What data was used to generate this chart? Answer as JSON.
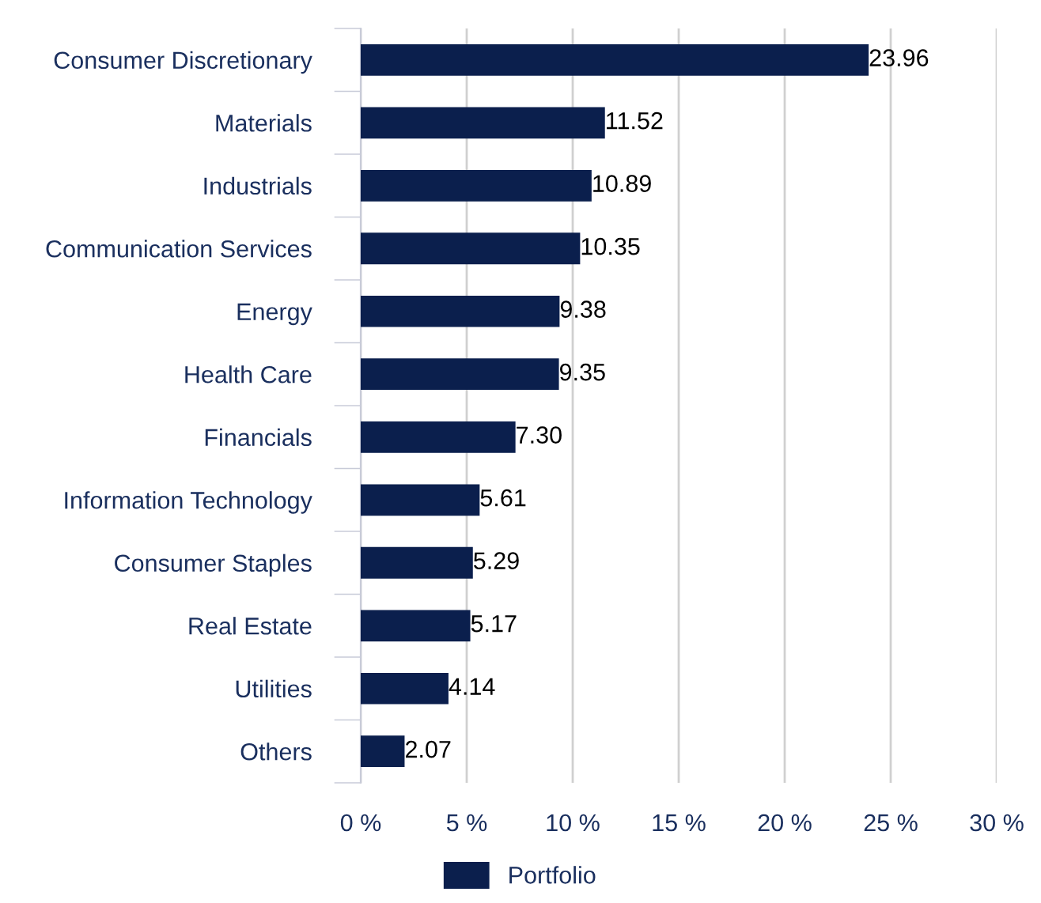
{
  "chart_data": {
    "type": "bar",
    "orientation": "horizontal",
    "categories": [
      "Consumer Discretionary",
      "Materials",
      "Industrials",
      "Communication Services",
      "Energy",
      "Health Care",
      "Financials",
      "Information Technology",
      "Consumer Staples",
      "Real Estate",
      "Utilities",
      "Others"
    ],
    "series": [
      {
        "name": "Portfolio",
        "color": "#0b1f4d",
        "values": [
          23.96,
          11.52,
          10.89,
          10.35,
          9.38,
          9.35,
          7.3,
          5.61,
          5.29,
          5.17,
          4.14,
          2.07
        ],
        "value_labels": [
          "23.96",
          "11.52",
          "10.89",
          "10.35",
          "9.38",
          "9.35",
          "7.30",
          "5.61",
          "5.29",
          "5.17",
          "4.14",
          "2.07"
        ]
      }
    ],
    "xlim": [
      0,
      30
    ],
    "xticks": [
      {
        "value": 0,
        "label": "0 %"
      },
      {
        "value": 5,
        "label": "5 %"
      },
      {
        "value": 10,
        "label": "10 %"
      },
      {
        "value": 15,
        "label": "15 %"
      },
      {
        "value": 20,
        "label": "20 %"
      },
      {
        "value": 25,
        "label": "25 %"
      },
      {
        "value": 30,
        "label": "30 %"
      }
    ],
    "grid": "x",
    "legend": "bottom"
  }
}
